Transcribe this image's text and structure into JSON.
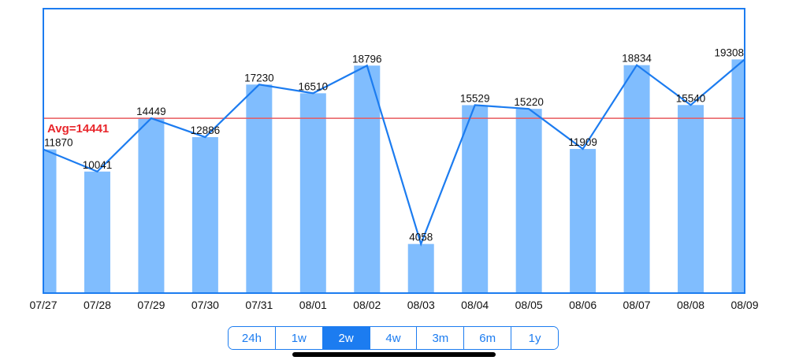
{
  "chart_data": {
    "type": "bar",
    "categories": [
      "07/27",
      "07/28",
      "07/29",
      "07/30",
      "07/31",
      "08/01",
      "08/02",
      "08/03",
      "08/04",
      "08/05",
      "08/06",
      "08/07",
      "08/08",
      "08/09"
    ],
    "values": [
      11870,
      10041,
      14449,
      12886,
      17230,
      16510,
      18796,
      4058,
      15529,
      15220,
      11909,
      18834,
      15540,
      19308
    ],
    "line_overlay": true,
    "average": 14441,
    "average_label": "Avg=14441",
    "ylim": [
      0,
      23500
    ],
    "grid": false,
    "colors": {
      "bar": "#80bdfe",
      "line": "#1c7cf0",
      "avg": "#e85a5d",
      "avg_text": "#e8262b",
      "frame": "#1c7cf0"
    }
  },
  "range_selector": {
    "options": [
      "24h",
      "1w",
      "2w",
      "4w",
      "3m",
      "6m",
      "1y"
    ],
    "selected": "2w"
  }
}
